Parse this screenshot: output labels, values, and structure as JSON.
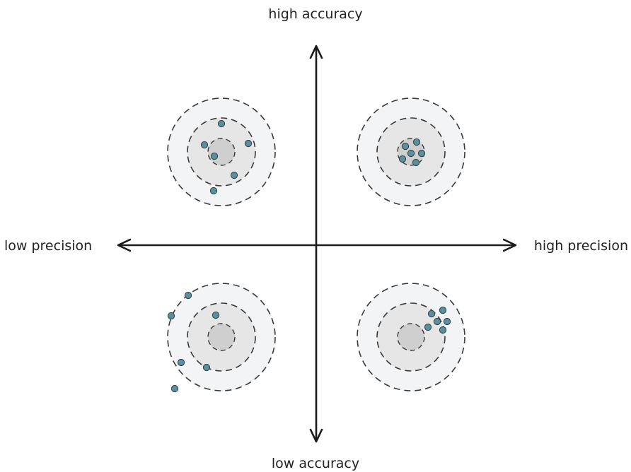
{
  "labels": {
    "top": "high accuracy",
    "bottom": "low accuracy",
    "left": "low precision",
    "right": "high precision"
  },
  "colors": {
    "axis": "#1a1a1a",
    "outer_ring_fill": "#f3f4f5",
    "middle_ring_fill": "#e6e6e6",
    "bullseye_fill": "#cfcfcf",
    "ring_stroke": "#3a3a3a",
    "point_fill": "#5e8e9b",
    "point_stroke": "#2f4a52"
  },
  "targets": [
    {
      "id": "low-precision-high-accuracy"
    },
    {
      "id": "high-precision-high-accuracy"
    },
    {
      "id": "low-precision-low-accuracy"
    },
    {
      "id": "high-precision-low-accuracy"
    }
  ]
}
